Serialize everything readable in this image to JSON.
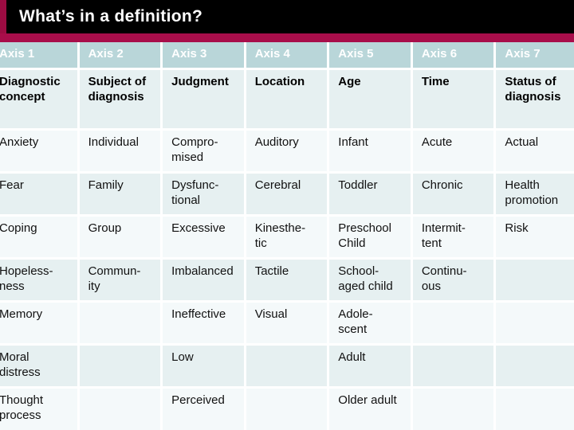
{
  "slide": {
    "title": "What’s in a definition?",
    "colors": {
      "title_bar": "#000000",
      "title_text": "#ffffff",
      "accent_band": "#a80d4a",
      "accent_left_bar": "#9c0c42",
      "header_bg": "#b9d6d9",
      "header_text": "#ffffff",
      "row_band_blue": "#e6f0f1",
      "row_band_white": "#f4f9fa"
    }
  },
  "table": {
    "columns": [
      "Axis 1",
      "Axis 2",
      "Axis 3",
      "Axis 4",
      "Axis 5",
      "Axis 6",
      "Axis 7"
    ],
    "rows": [
      {
        "cells": [
          "Diagnostic\nconcept",
          "Subject of\ndiagnosis",
          "Judgment",
          "Location",
          "Age",
          "Time",
          "Status of\ndiagnosis"
        ]
      },
      {
        "cells": [
          "Anxiety",
          "Individual",
          "Compro-\nmised",
          "Auditory",
          "Infant",
          "Acute",
          "Actual"
        ]
      },
      {
        "cells": [
          "Fear",
          "Family",
          "Dysfunc-\ntional",
          "Cerebral",
          "Toddler",
          "Chronic",
          "Health\npromotion"
        ]
      },
      {
        "cells": [
          "Coping",
          "Group",
          "Excessive",
          "Kinesthe-\ntic",
          "Preschool\nChild",
          "Intermit-\ntent",
          "Risk"
        ]
      },
      {
        "cells": [
          "Hopeless-\nness",
          "Commun-\nity",
          "Imbalanced",
          "Tactile",
          "School-\naged child",
          "Continu-\nous",
          ""
        ]
      },
      {
        "cells": [
          "Memory",
          "",
          "Ineffective",
          "Visual",
          "Adole-\nscent",
          "",
          ""
        ]
      },
      {
        "cells": [
          "Moral\ndistress",
          "",
          "Low",
          "",
          "Adult",
          "",
          ""
        ]
      },
      {
        "cells": [
          "Thought\nprocess",
          "",
          "Perceived",
          "",
          "Older adult",
          "",
          ""
        ]
      }
    ]
  }
}
